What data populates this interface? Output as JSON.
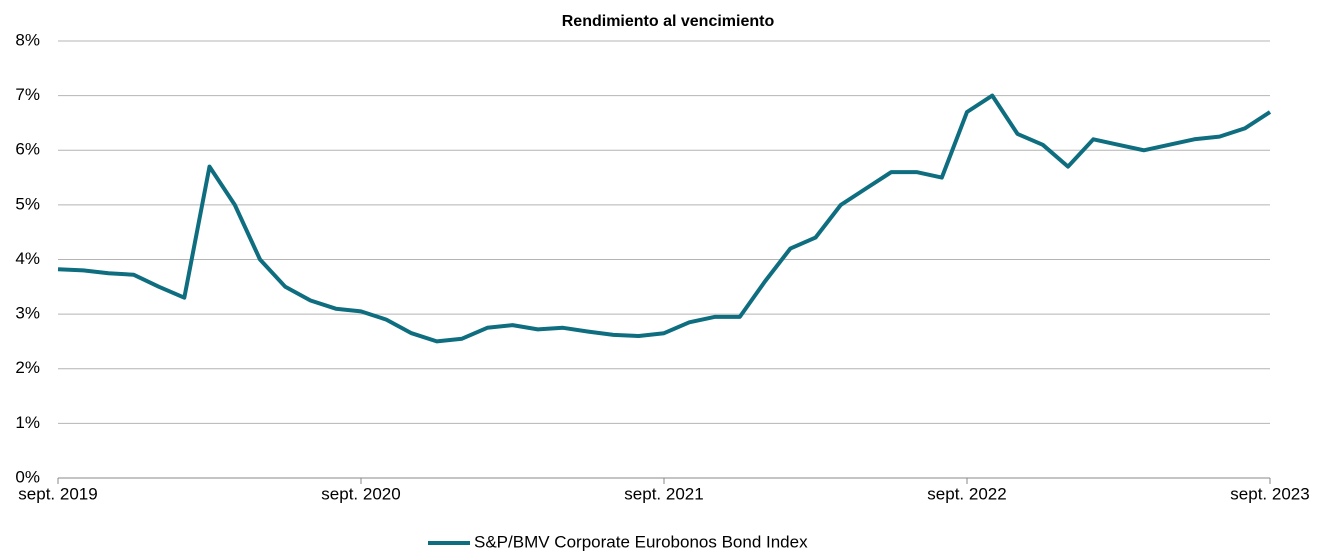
{
  "chart_data": {
    "type": "line",
    "title": "Rendimiento al vencimiento",
    "categories": [
      "sept. 2019",
      null,
      null,
      null,
      null,
      null,
      null,
      null,
      null,
      null,
      null,
      null,
      "sept. 2020",
      null,
      null,
      null,
      null,
      null,
      null,
      null,
      null,
      null,
      null,
      null,
      "sept. 2021",
      null,
      null,
      null,
      null,
      null,
      null,
      null,
      null,
      null,
      null,
      null,
      "sept. 2022",
      null,
      null,
      null,
      null,
      null,
      null,
      null,
      null,
      null,
      null,
      null,
      "sept. 2023"
    ],
    "series": [
      {
        "name": "S&P/BMV Corporate Eurobonos Bond Index",
        "color": "#0e6e80",
        "values": [
          3.82,
          3.8,
          3.75,
          3.72,
          3.5,
          3.3,
          5.7,
          5.0,
          4.0,
          3.5,
          3.25,
          3.1,
          3.05,
          2.9,
          2.65,
          2.5,
          2.55,
          2.75,
          2.8,
          2.72,
          2.75,
          2.68,
          2.62,
          2.6,
          2.65,
          2.85,
          2.95,
          2.95,
          3.6,
          4.2,
          4.4,
          5.0,
          5.3,
          5.6,
          5.6,
          5.5,
          6.7,
          7.0,
          6.3,
          6.1,
          5.7,
          6.2,
          6.1,
          6.0,
          6.1,
          6.2,
          6.25,
          6.4,
          6.7
        ]
      }
    ],
    "ylim": [
      0,
      8
    ],
    "yticks": [
      {
        "value": 0,
        "label": "0%"
      },
      {
        "value": 1,
        "label": "1%"
      },
      {
        "value": 2,
        "label": "2%"
      },
      {
        "value": 3,
        "label": "3%"
      },
      {
        "value": 4,
        "label": "4%"
      },
      {
        "value": 5,
        "label": "5%"
      },
      {
        "value": 6,
        "label": "6%"
      },
      {
        "value": 7,
        "label": "7%"
      },
      {
        "value": 8,
        "label": "8%"
      }
    ],
    "grid": true,
    "legend": "bottom"
  }
}
